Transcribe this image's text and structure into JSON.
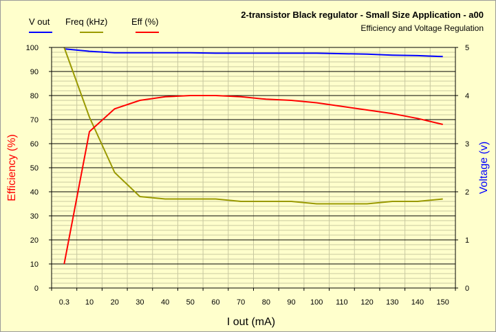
{
  "chart_data": {
    "type": "line",
    "title": "2-transistor Black regulator  - Small Size Application - a00",
    "subtitle": "Efficiency and Voltage Regulation",
    "xlabel": "I out (mA)",
    "ylabel_left": "Efficiency (%)",
    "ylabel_right": "Voltage (v)",
    "ylim_left": [
      0,
      100
    ],
    "ylim_right": [
      0,
      5
    ],
    "grid": true,
    "legend_position": "top-left",
    "categories": [
      "0.3",
      "10",
      "20",
      "30",
      "40",
      "50",
      "60",
      "70",
      "80",
      "90",
      "100",
      "110",
      "120",
      "130",
      "140",
      "150"
    ],
    "y_ticks_left": [
      "0",
      "10",
      "20",
      "30",
      "40",
      "50",
      "60",
      "70",
      "80",
      "90",
      "100"
    ],
    "y_ticks_right": [
      "0",
      "1",
      "2",
      "3",
      "4",
      "5"
    ],
    "series": [
      {
        "name": "V out",
        "axis": "right",
        "color": "#0000ff",
        "values": [
          4.97,
          4.92,
          4.89,
          4.89,
          4.89,
          4.89,
          4.88,
          4.88,
          4.88,
          4.88,
          4.88,
          4.87,
          4.86,
          4.84,
          4.83,
          4.81
        ]
      },
      {
        "name": "Freq  (kHz)",
        "axis": "left",
        "color": "#999900",
        "values": [
          100,
          71,
          48,
          38,
          37,
          37,
          37,
          36,
          36,
          36,
          35,
          35,
          35,
          36,
          36,
          37
        ]
      },
      {
        "name": "Eff  (%)",
        "axis": "left",
        "color": "#ff0000",
        "values": [
          10,
          65,
          74.5,
          78,
          79.5,
          80,
          80,
          79.5,
          78.5,
          78,
          77,
          75.5,
          74,
          72.5,
          70.5,
          68
        ]
      }
    ]
  }
}
